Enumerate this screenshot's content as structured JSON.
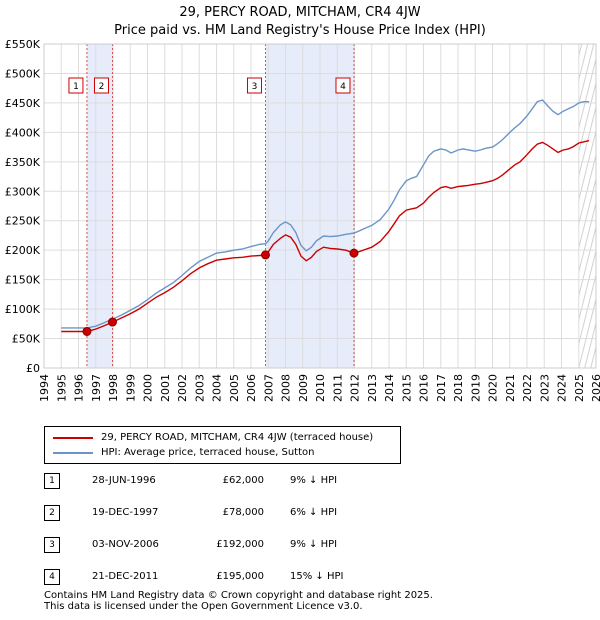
{
  "chart_data": {
    "type": "line",
    "title": "29, PERCY ROAD, MITCHAM, CR4 4JW",
    "subtitle": "Price paid vs. HM Land Registry's House Price Index (HPI)",
    "xlabel": "",
    "ylabel": "",
    "xlim": [
      1994,
      2026
    ],
    "ylim": [
      0,
      550000
    ],
    "grid": true,
    "x_ticks": [
      "1994",
      "1995",
      "1996",
      "1997",
      "1998",
      "1999",
      "2000",
      "2001",
      "2002",
      "2003",
      "2004",
      "2005",
      "2006",
      "2007",
      "2008",
      "2009",
      "2010",
      "2011",
      "2012",
      "2013",
      "2014",
      "2015",
      "2016",
      "2017",
      "2018",
      "2019",
      "2020",
      "2021",
      "2022",
      "2023",
      "2024",
      "2025",
      "2026"
    ],
    "y_ticks": [
      {
        "value": 0,
        "label": "£0"
      },
      {
        "value": 50000,
        "label": "£50K"
      },
      {
        "value": 100000,
        "label": "£100K"
      },
      {
        "value": 150000,
        "label": "£150K"
      },
      {
        "value": 200000,
        "label": "£200K"
      },
      {
        "value": 250000,
        "label": "£250K"
      },
      {
        "value": 300000,
        "label": "£300K"
      },
      {
        "value": 350000,
        "label": "£350K"
      },
      {
        "value": 400000,
        "label": "£400K"
      },
      {
        "value": 450000,
        "label": "£450K"
      },
      {
        "value": 500000,
        "label": "£500K"
      },
      {
        "value": 550000,
        "label": "£550K"
      }
    ],
    "shaded_periods": [
      {
        "from": 1996.49,
        "to": 1997.97
      },
      {
        "from": 2006.84,
        "to": 2011.97
      }
    ],
    "series": [
      {
        "name": "29, PERCY ROAD, MITCHAM, CR4 4JW (terraced house)",
        "color": "#cc0000",
        "x": [
          1995.0,
          1995.5,
          1996.0,
          1996.49,
          1997.0,
          1997.5,
          1997.97,
          1998.5,
          1999.0,
          1999.5,
          2000.0,
          2000.5,
          2001.0,
          2001.5,
          2002.0,
          2002.5,
          2003.0,
          2003.5,
          2004.0,
          2004.5,
          2005.0,
          2005.5,
          2006.0,
          2006.5,
          2006.84,
          2007.0,
          2007.3,
          2007.7,
          2008.0,
          2008.3,
          2008.6,
          2008.9,
          2009.2,
          2009.5,
          2009.8,
          2010.2,
          2010.6,
          2011.0,
          2011.5,
          2011.97,
          2012.3,
          2012.6,
          2013.0,
          2013.5,
          2014.0,
          2014.3,
          2014.6,
          2015.0,
          2015.3,
          2015.6,
          2016.0,
          2016.3,
          2016.6,
          2017.0,
          2017.3,
          2017.6,
          2018.0,
          2018.3,
          2018.6,
          2019.0,
          2019.3,
          2019.6,
          2020.0,
          2020.3,
          2020.6,
          2021.0,
          2021.3,
          2021.6,
          2022.0,
          2022.3,
          2022.6,
          2022.9,
          2023.2,
          2023.5,
          2023.8,
          2024.1,
          2024.4,
          2024.7,
          2025.0,
          2025.3,
          2025.6
        ],
        "values": [
          62000,
          62000,
          62000,
          62000,
          66000,
          72000,
          78000,
          85000,
          92000,
          100000,
          110000,
          120000,
          128000,
          137000,
          148000,
          160000,
          170000,
          177000,
          183000,
          185000,
          187000,
          188000,
          190000,
          191000,
          192000,
          197000,
          210000,
          220000,
          226000,
          222000,
          210000,
          190000,
          182000,
          188000,
          198000,
          205000,
          203000,
          202000,
          200000,
          195000,
          198000,
          201000,
          205000,
          215000,
          232000,
          245000,
          258000,
          268000,
          270000,
          272000,
          280000,
          290000,
          298000,
          306000,
          308000,
          305000,
          308000,
          309000,
          310000,
          312000,
          313000,
          315000,
          318000,
          322000,
          328000,
          338000,
          345000,
          350000,
          362000,
          372000,
          380000,
          383000,
          378000,
          372000,
          366000,
          370000,
          372000,
          376000,
          382000,
          384000,
          386000
        ]
      },
      {
        "name": "HPI: Average price, terraced house, Sutton",
        "color": "#6b95c8",
        "x": [
          1995.0,
          1995.5,
          1996.0,
          1996.49,
          1997.0,
          1997.5,
          1997.97,
          1998.5,
          1999.0,
          1999.5,
          2000.0,
          2000.5,
          2001.0,
          2001.5,
          2002.0,
          2002.5,
          2003.0,
          2003.5,
          2004.0,
          2004.5,
          2005.0,
          2005.5,
          2006.0,
          2006.5,
          2006.84,
          2007.0,
          2007.3,
          2007.7,
          2008.0,
          2008.3,
          2008.6,
          2008.9,
          2009.2,
          2009.5,
          2009.8,
          2010.2,
          2010.6,
          2011.0,
          2011.5,
          2011.97,
          2012.3,
          2012.6,
          2013.0,
          2013.5,
          2014.0,
          2014.3,
          2014.6,
          2015.0,
          2015.3,
          2015.6,
          2016.0,
          2016.3,
          2016.6,
          2017.0,
          2017.3,
          2017.6,
          2018.0,
          2018.3,
          2018.6,
          2019.0,
          2019.3,
          2019.6,
          2020.0,
          2020.3,
          2020.6,
          2021.0,
          2021.3,
          2021.6,
          2022.0,
          2022.3,
          2022.6,
          2022.9,
          2023.2,
          2023.5,
          2023.8,
          2024.1,
          2024.4,
          2024.7,
          2025.0,
          2025.3,
          2025.6
        ],
        "values": [
          68000,
          68000,
          68000,
          68000,
          71000,
          77000,
          83000,
          90000,
          98000,
          106000,
          116000,
          127000,
          136000,
          145000,
          157000,
          170000,
          181000,
          188000,
          195000,
          197000,
          200000,
          202000,
          206000,
          210000,
          211000,
          216000,
          230000,
          243000,
          248000,
          243000,
          230000,
          208000,
          199000,
          205000,
          216000,
          224000,
          223000,
          224000,
          227000,
          229000,
          233000,
          237000,
          242000,
          252000,
          270000,
          285000,
          302000,
          318000,
          322000,
          325000,
          345000,
          360000,
          368000,
          372000,
          370000,
          365000,
          370000,
          372000,
          370000,
          368000,
          370000,
          373000,
          375000,
          381000,
          388000,
          400000,
          408000,
          415000,
          428000,
          440000,
          452000,
          455000,
          445000,
          436000,
          430000,
          436000,
          440000,
          444000,
          450000,
          452000,
          452000
        ]
      }
    ],
    "sales": [
      {
        "label": "1",
        "x": 1996.49,
        "price": 62000
      },
      {
        "label": "2",
        "x": 1997.97,
        "price": 78000
      },
      {
        "label": "3",
        "x": 2006.84,
        "price": 192000
      },
      {
        "label": "4",
        "x": 2011.97,
        "price": 195000
      }
    ]
  },
  "legend": {
    "items": [
      {
        "label": "29, PERCY ROAD, MITCHAM, CR4 4JW (terraced house)",
        "color": "#cc0000"
      },
      {
        "label": "HPI: Average price, terraced house, Sutton",
        "color": "#6b95c8"
      }
    ]
  },
  "sales_table": [
    {
      "num": "1",
      "date": "28-JUN-1996",
      "price": "£62,000",
      "hpi": "9% ↓ HPI"
    },
    {
      "num": "2",
      "date": "19-DEC-1997",
      "price": "£78,000",
      "hpi": "6% ↓ HPI"
    },
    {
      "num": "3",
      "date": "03-NOV-2006",
      "price": "£192,000",
      "hpi": "9% ↓ HPI"
    },
    {
      "num": "4",
      "date": "21-DEC-2011",
      "price": "£195,000",
      "hpi": "15% ↓ HPI"
    }
  ],
  "footer": {
    "line1": "Contains HM Land Registry data © Crown copyright and database right 2025.",
    "line2": "This data is licensed under the Open Government Licence v3.0."
  },
  "colors": {
    "grid": "#dddddd",
    "plot_bg": "#ffffff",
    "shade": "#e6ecfa",
    "vline": "#d9534f"
  }
}
